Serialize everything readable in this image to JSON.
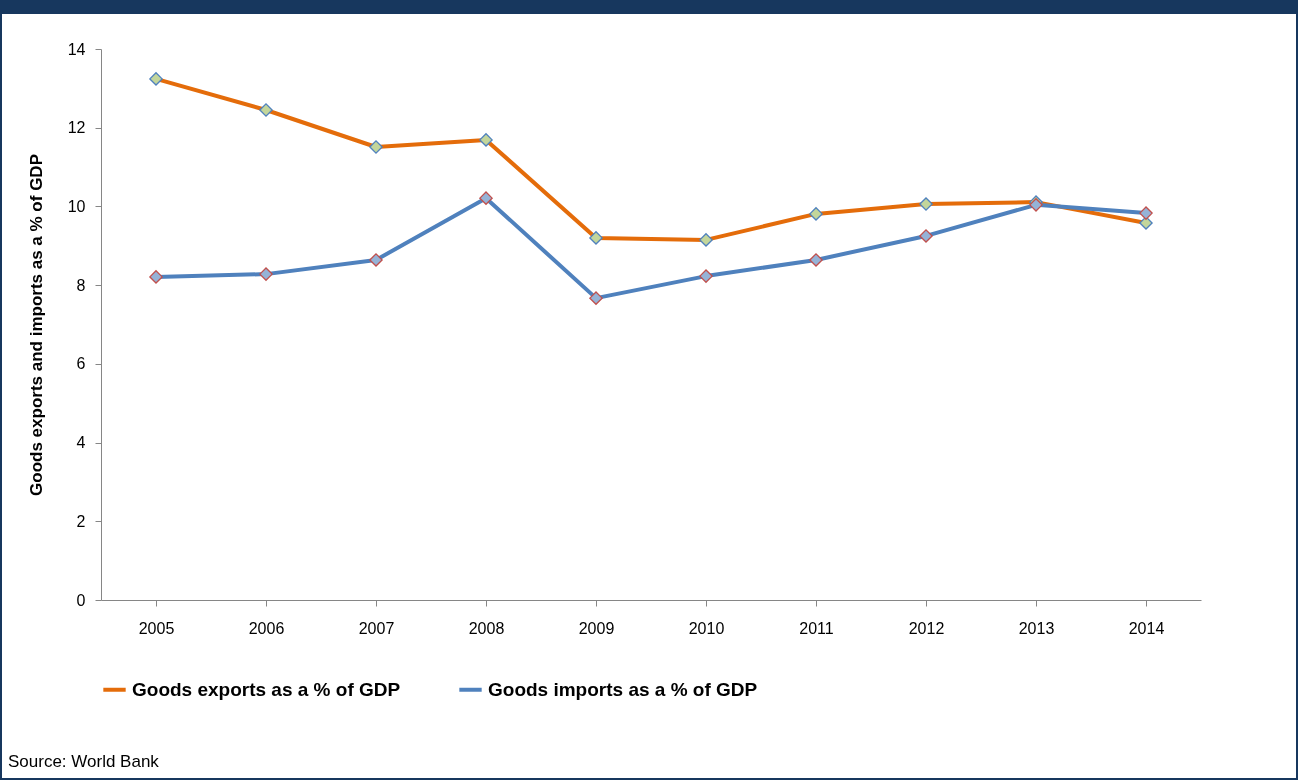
{
  "chart_data": {
    "type": "line",
    "ylabel": "Goods exports and imports as a % of GDP",
    "categories": [
      "2005",
      "2006",
      "2007",
      "2008",
      "2009",
      "2010",
      "2011",
      "2012",
      "2013",
      "2014"
    ],
    "series": [
      {
        "name": "Goods exports as a % of GDP",
        "color": "#e46c0a",
        "values": [
          13.24,
          12.45,
          11.51,
          11.69,
          9.2,
          9.15,
          9.81,
          10.06,
          10.11,
          9.58
        ]
      },
      {
        "name": "Goods imports as a % of GDP",
        "color": "#4f81bd",
        "values": [
          8.21,
          8.28,
          8.64,
          10.21,
          7.67,
          8.23,
          8.64,
          9.25,
          10.04,
          9.83
        ]
      }
    ],
    "ylim": [
      0,
      14
    ],
    "yticks": [
      0,
      2,
      4,
      6,
      8,
      10,
      12,
      14
    ],
    "grid": false,
    "legend": "bottom",
    "marker": "diamond",
    "line_style": "solid",
    "annotations": [
      "Source: World Bank"
    ]
  }
}
